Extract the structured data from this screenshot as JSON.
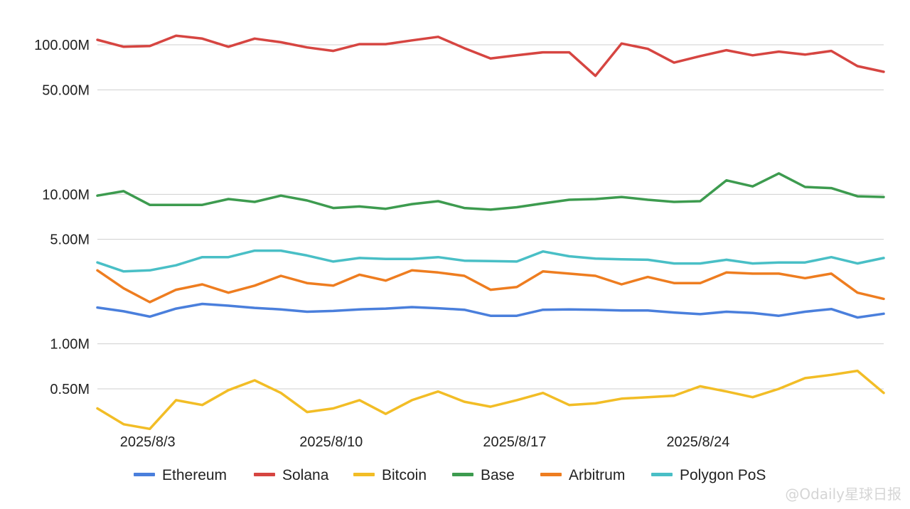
{
  "watermark": "@Odaily星球日报",
  "chart_data": {
    "type": "line",
    "yscale": "log",
    "ylim": [
      240000,
      140000000
    ],
    "yticks": [
      {
        "value": 100000000,
        "label": "100.00M"
      },
      {
        "value": 50000000,
        "label": "50.00M"
      },
      {
        "value": 10000000,
        "label": "10.00M"
      },
      {
        "value": 5000000,
        "label": "5.00M"
      },
      {
        "value": 1000000,
        "label": "1.00M"
      },
      {
        "value": 500000,
        "label": "0.50M"
      }
    ],
    "x": [
      "2025/8/1",
      "2025/8/2",
      "2025/8/3",
      "2025/8/4",
      "2025/8/5",
      "2025/8/6",
      "2025/8/7",
      "2025/8/8",
      "2025/8/9",
      "2025/8/10",
      "2025/8/11",
      "2025/8/12",
      "2025/8/13",
      "2025/8/14",
      "2025/8/15",
      "2025/8/16",
      "2025/8/17",
      "2025/8/18",
      "2025/8/19",
      "2025/8/20",
      "2025/8/21",
      "2025/8/22",
      "2025/8/23",
      "2025/8/24",
      "2025/8/25",
      "2025/8/26",
      "2025/8/27",
      "2025/8/28",
      "2025/8/29",
      "2025/8/30",
      "2025/8/31"
    ],
    "xticks": [
      {
        "index": 2,
        "label": "2025/8/3"
      },
      {
        "index": 9,
        "label": "2025/8/10"
      },
      {
        "index": 16,
        "label": "2025/8/17"
      },
      {
        "index": 23,
        "label": "2025/8/24"
      }
    ],
    "legend_position": "bottom",
    "grid": true,
    "series": [
      {
        "name": "Ethereum",
        "color": "#4a7fdc",
        "values": [
          1.75,
          1.65,
          1.52,
          1.72,
          1.85,
          1.8,
          1.74,
          1.7,
          1.64,
          1.66,
          1.7,
          1.72,
          1.76,
          1.73,
          1.69,
          1.54,
          1.54,
          1.69,
          1.7,
          1.69,
          1.67,
          1.67,
          1.62,
          1.58,
          1.64,
          1.61,
          1.54,
          1.64,
          1.71,
          1.5,
          1.59
        ]
      },
      {
        "name": "Solana",
        "color": "#d64541",
        "values": [
          108,
          97,
          98,
          115,
          110,
          97,
          110,
          104,
          96,
          91,
          101,
          101,
          107,
          113,
          95,
          81,
          85,
          89,
          89,
          62,
          102,
          94,
          76,
          84,
          92,
          85,
          90,
          86,
          91,
          72,
          66
        ]
      },
      {
        "name": "Bitcoin",
        "color": "#f2bd26",
        "values": [
          0.37,
          0.29,
          0.27,
          0.42,
          0.39,
          0.49,
          0.57,
          0.47,
          0.35,
          0.37,
          0.42,
          0.34,
          0.42,
          0.48,
          0.41,
          0.38,
          0.42,
          0.47,
          0.39,
          0.4,
          0.43,
          0.44,
          0.45,
          0.52,
          0.48,
          0.44,
          0.5,
          0.59,
          0.62,
          0.66,
          0.47
        ]
      },
      {
        "name": "Base",
        "color": "#3d9b4f",
        "values": [
          9.8,
          10.5,
          8.5,
          8.5,
          8.5,
          9.3,
          8.9,
          9.8,
          9.1,
          8.1,
          8.3,
          8.0,
          8.6,
          9.0,
          8.1,
          7.9,
          8.2,
          8.7,
          9.2,
          9.3,
          9.6,
          9.2,
          8.9,
          9.0,
          12.4,
          11.3,
          13.8,
          11.2,
          11.0,
          9.7,
          9.6
        ]
      },
      {
        "name": "Arbitrum",
        "color": "#ee7d20",
        "values": [
          3.1,
          2.35,
          1.9,
          2.3,
          2.5,
          2.2,
          2.45,
          2.85,
          2.55,
          2.45,
          2.9,
          2.65,
          3.1,
          3.0,
          2.85,
          2.3,
          2.4,
          3.05,
          2.95,
          2.85,
          2.5,
          2.8,
          2.55,
          2.55,
          3.0,
          2.95,
          2.95,
          2.75,
          2.95,
          2.2,
          2.0
        ]
      },
      {
        "name": "Polygon PoS",
        "color": "#49bfc6",
        "values": [
          3.5,
          3.05,
          3.1,
          3.35,
          3.8,
          3.8,
          4.2,
          4.2,
          3.9,
          3.55,
          3.75,
          3.7,
          3.7,
          3.8,
          3.6,
          3.58,
          3.55,
          4.15,
          3.85,
          3.72,
          3.68,
          3.65,
          3.45,
          3.45,
          3.65,
          3.45,
          3.5,
          3.5,
          3.8,
          3.45,
          3.75
        ]
      }
    ]
  }
}
